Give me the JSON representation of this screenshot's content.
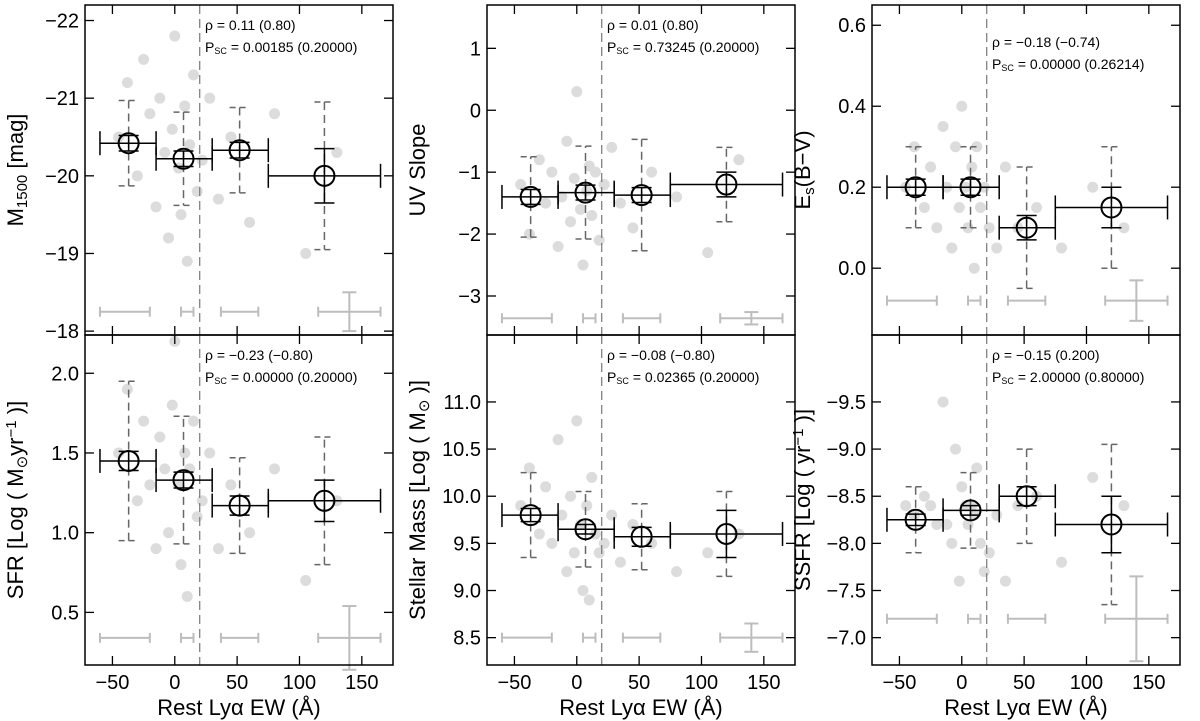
{
  "chart_data": [
    {
      "type": "scatter",
      "ylabel": [
        {
          "text": "M"
        },
        {
          "text": "1500",
          "shift": "sub"
        },
        {
          "text": " [mag]"
        }
      ],
      "xlim": [
        -72,
        175
      ],
      "ylim": [
        -17.95,
        -22.2
      ],
      "xticks": [
        {
          "value": -50,
          "label": "−50"
        },
        0,
        50,
        100,
        150
      ],
      "xtick_labels": false,
      "yticks": [
        {
          "value": -18,
          "label": "−18"
        },
        {
          "value": -19,
          "label": "−19"
        },
        {
          "value": -20,
          "label": "−20"
        },
        {
          "value": -21,
          "label": "−21"
        },
        {
          "value": -22,
          "label": "−22"
        }
      ],
      "rho": "ρ = 0.11 (0.80)",
      "psc_name": "P",
      "psc_sub": "SC",
      "psc": "= 0.00185 (0.20000)",
      "vline": 20,
      "points_x": [
        -45,
        -38,
        -30,
        -25,
        -20,
        -15,
        -12,
        -8,
        -5,
        -2,
        0,
        3,
        5,
        8,
        10,
        12,
        15,
        18,
        22,
        28,
        35,
        45,
        60,
        80,
        105,
        130
      ],
      "points_y": [
        -20.5,
        -21.2,
        -20.0,
        -21.5,
        -20.8,
        -19.6,
        -21.0,
        -20.3,
        -19.2,
        -20.6,
        -21.8,
        -20.1,
        -19.5,
        -20.9,
        -18.9,
        -20.4,
        -21.3,
        -19.8,
        -20.2,
        -21.0,
        -19.7,
        -20.5,
        -19.4,
        -20.8,
        -19.0,
        -20.3
      ],
      "bins_x": [
        -37,
        7,
        52,
        120
      ],
      "bin_edges": [
        -60,
        -15,
        30,
        75,
        165
      ],
      "values": [
        -20.42,
        -20.22,
        -20.33,
        -20.0
      ],
      "errors": [
        0.1,
        0.1,
        0.1,
        0.35
      ],
      "spread": [
        0.55,
        0.6,
        0.55,
        0.95
      ],
      "ref_x": [
        -40,
        10,
        52,
        140
      ],
      "ref_xerr": [
        20,
        5,
        15,
        25
      ],
      "ref_y": -18.25,
      "ref_yerr": 0.25
    },
    {
      "type": "scatter",
      "ylabel": [
        {
          "text": "UV Slope"
        }
      ],
      "xlim": [
        -72,
        175
      ],
      "ylim": [
        -3.63,
        1.7
      ],
      "xticks": [
        {
          "value": -50,
          "label": "−50"
        },
        0,
        50,
        100,
        150
      ],
      "xtick_labels": false,
      "yticks": [
        {
          "value": -3,
          "label": "−3"
        },
        {
          "value": -2,
          "label": "−2"
        },
        {
          "value": -1,
          "label": "−1"
        },
        0,
        1
      ],
      "rho": "ρ = 0.01 (0.80)",
      "psc_name": "P",
      "psc_sub": "SC",
      "psc": "= 0.73245 (0.20000)",
      "vline": 20,
      "points_x": [
        -45,
        -38,
        -30,
        -25,
        -20,
        -15,
        -12,
        -8,
        -5,
        -2,
        0,
        3,
        5,
        8,
        10,
        12,
        15,
        18,
        22,
        28,
        35,
        45,
        60,
        80,
        105,
        130
      ],
      "points_y": [
        -1.2,
        -2.0,
        -0.8,
        -1.5,
        -1.0,
        -2.2,
        -1.4,
        -0.5,
        -1.8,
        -1.1,
        0.3,
        -1.6,
        -2.5,
        -1.3,
        -0.9,
        -1.7,
        -1.0,
        -2.1,
        -1.2,
        -0.6,
        -1.5,
        -1.9,
        -1.0,
        -1.4,
        -2.3,
        -0.8
      ],
      "bins_x": [
        -37,
        7,
        52,
        120
      ],
      "bin_edges": [
        -60,
        -15,
        30,
        75,
        165
      ],
      "values": [
        -1.4,
        -1.33,
        -1.37,
        -1.2
      ],
      "errors": [
        0.12,
        0.12,
        0.12,
        0.2
      ],
      "spread": [
        0.65,
        0.75,
        0.9,
        0.6
      ],
      "ref_x": [
        -40,
        10,
        52,
        140
      ],
      "ref_xerr": [
        20,
        5,
        15,
        25
      ],
      "ref_y": -3.36,
      "ref_yerr": 0.1
    },
    {
      "type": "scatter",
      "ylabel": [
        {
          "text": "E"
        },
        {
          "text": "s",
          "shift": "sub"
        },
        {
          "text": "(B−V)"
        }
      ],
      "xlim": [
        -72,
        175
      ],
      "ylim": [
        -0.165,
        0.65
      ],
      "xticks": [
        {
          "value": -50,
          "label": "−50"
        },
        0,
        50,
        100,
        150
      ],
      "xtick_labels": false,
      "yticks": [
        {
          "value": 0,
          "label": "0.0"
        },
        0.2,
        0.4,
        0.6
      ],
      "rho": "ρ = −0.18 (−0.74)",
      "psc_name": "P",
      "psc_sub": "SC",
      "psc": "= 0.00000 (0.26214)",
      "vline": 20,
      "points_x": [
        -45,
        -38,
        -30,
        -25,
        -20,
        -15,
        -12,
        -8,
        -5,
        -2,
        0,
        3,
        5,
        8,
        10,
        12,
        15,
        18,
        22,
        28,
        35,
        45,
        60,
        80,
        105,
        130
      ],
      "points_y": [
        0.2,
        0.3,
        0.15,
        0.25,
        0.1,
        0.35,
        0.2,
        0.05,
        0.3,
        0.15,
        0.4,
        0.2,
        0.1,
        0.25,
        0.0,
        0.3,
        0.15,
        0.2,
        0.1,
        0.05,
        0.25,
        0.1,
        0.15,
        0.05,
        0.2,
        0.1
      ],
      "bins_x": [
        -37,
        7,
        52,
        120
      ],
      "bin_edges": [
        -60,
        -15,
        30,
        75,
        165
      ],
      "values": [
        0.2,
        0.2,
        0.1,
        0.15
      ],
      "errors": [
        0.02,
        0.02,
        0.03,
        0.05
      ],
      "spread": [
        0.1,
        0.1,
        0.15,
        0.15
      ],
      "ref_x": [
        -40,
        10,
        52,
        140
      ],
      "ref_xerr": [
        20,
        5,
        15,
        25
      ],
      "ref_y": -0.08,
      "ref_yerr": 0.05
    },
    {
      "type": "scatter",
      "xlabel": "Rest Lyα EW (Å)",
      "ylabel": [
        {
          "text": "SFR [Log ( M"
        },
        {
          "text": "⊙",
          "shift": "sub"
        },
        {
          "text": "yr"
        },
        {
          "text": "−1",
          "shift": "super"
        },
        {
          "text": " )]"
        }
      ],
      "xlim": [
        -72,
        175
      ],
      "ylim": [
        0.17,
        2.24
      ],
      "xticks": [
        {
          "value": -50,
          "label": "−50"
        },
        0,
        50,
        100,
        150
      ],
      "xtick_labels": true,
      "yticks": [
        0.5,
        {
          "value": 1,
          "label": "1.0"
        },
        1.5,
        {
          "value": 2,
          "label": "2.0"
        }
      ],
      "rho": "ρ = −0.23 (−0.80)",
      "psc_name": "P",
      "psc_sub": "SC",
      "psc": "= 0.00000 (0.20000)",
      "vline": 20,
      "points_x": [
        -45,
        -38,
        -30,
        -25,
        -20,
        -15,
        -12,
        -8,
        -5,
        -2,
        0,
        3,
        5,
        8,
        10,
        12,
        15,
        18,
        22,
        28,
        35,
        45,
        60,
        80,
        105,
        130
      ],
      "points_y": [
        1.5,
        1.9,
        1.2,
        1.7,
        1.3,
        0.9,
        1.6,
        1.4,
        1.0,
        1.8,
        2.2,
        1.3,
        0.8,
        1.5,
        0.6,
        1.4,
        1.7,
        1.1,
        1.2,
        1.5,
        0.9,
        1.3,
        1.0,
        1.4,
        0.7,
        1.2
      ],
      "bins_x": [
        -37,
        7,
        52,
        120
      ],
      "bin_edges": [
        -60,
        -15,
        30,
        75,
        165
      ],
      "values": [
        1.45,
        1.33,
        1.17,
        1.2
      ],
      "errors": [
        0.06,
        0.05,
        0.06,
        0.13
      ],
      "spread": [
        0.5,
        0.4,
        0.3,
        0.4
      ],
      "ref_x": [
        -40,
        10,
        52,
        140
      ],
      "ref_xerr": [
        20,
        5,
        15,
        25
      ],
      "ref_y": 0.34,
      "ref_yerr": 0.2
    },
    {
      "type": "scatter",
      "xlabel": "Rest Lyα EW (Å)",
      "ylabel": [
        {
          "text": "Stellar Mass [Log ( M"
        },
        {
          "text": "⊙",
          "shift": "sub"
        },
        {
          "text": " )]"
        }
      ],
      "xlim": [
        -72,
        175
      ],
      "ylim": [
        8.21,
        11.71
      ],
      "xticks": [
        {
          "value": -50,
          "label": "−50"
        },
        0,
        50,
        100,
        150
      ],
      "xtick_labels": true,
      "yticks": [
        8.5,
        {
          "value": 9,
          "label": "9.0"
        },
        9.5,
        {
          "value": 10,
          "label": "10.0"
        },
        10.5,
        {
          "value": 11,
          "label": "11.0"
        }
      ],
      "rho": "ρ = −0.08 (−0.80)",
      "psc_name": "P",
      "psc_sub": "SC",
      "psc": "= 0.02365 (0.20000)",
      "vline": 20,
      "points_x": [
        -45,
        -38,
        -30,
        -25,
        -20,
        -15,
        -12,
        -8,
        -5,
        -2,
        0,
        3,
        5,
        8,
        10,
        12,
        15,
        18,
        22,
        28,
        35,
        45,
        60,
        80,
        105,
        130
      ],
      "points_y": [
        9.9,
        10.3,
        9.6,
        10.1,
        9.5,
        10.6,
        9.8,
        9.2,
        10.0,
        9.4,
        10.8,
        9.7,
        9.0,
        9.9,
        8.9,
        10.2,
        9.6,
        9.4,
        9.5,
        9.8,
        9.3,
        9.7,
        9.5,
        9.2,
        9.4,
        9.6
      ],
      "bins_x": [
        -37,
        7,
        52,
        120
      ],
      "bin_edges": [
        -60,
        -15,
        30,
        75,
        165
      ],
      "values": [
        9.8,
        9.65,
        9.57,
        9.6
      ],
      "errors": [
        0.07,
        0.05,
        0.1,
        0.25
      ],
      "spread": [
        0.45,
        0.4,
        0.35,
        0.45
      ],
      "ref_x": [
        -40,
        10,
        52,
        140
      ],
      "ref_xerr": [
        20,
        5,
        15,
        25
      ],
      "ref_y": 8.5,
      "ref_yerr": 0.15
    },
    {
      "type": "scatter",
      "xlabel": "Rest Lyα EW (Å)",
      "ylabel": [
        {
          "text": "SSFR [Log ( yr"
        },
        {
          "text": "−1",
          "shift": "super"
        },
        {
          "text": " )]"
        }
      ],
      "xlim": [
        -72,
        175
      ],
      "ylim": [
        -6.71,
        -10.21
      ],
      "xticks": [
        {
          "value": -50,
          "label": "−50"
        },
        0,
        50,
        100,
        150
      ],
      "xtick_labels": true,
      "yticks": [
        {
          "value": -7,
          "label": "−7.0"
        },
        {
          "value": -7.5,
          "label": "−7.5"
        },
        {
          "value": -8,
          "label": "−8.0"
        },
        {
          "value": -8.5,
          "label": "−8.5"
        },
        {
          "value": -9,
          "label": "−9.0"
        },
        {
          "value": -9.5,
          "label": "−9.5"
        }
      ],
      "rho": "ρ = −0.15 (0.200)",
      "psc_name": "P",
      "psc_sub": "SC",
      "psc": "= 2.00000 (0.80000)",
      "vline": 20,
      "points_x": [
        -45,
        -38,
        -30,
        -25,
        -20,
        -15,
        -12,
        -8,
        -5,
        -2,
        0,
        3,
        5,
        8,
        10,
        12,
        15,
        18,
        22,
        28,
        35,
        45,
        60,
        80,
        105,
        130
      ],
      "points_y": [
        -8.4,
        -8.3,
        -8.5,
        -8.4,
        -8.2,
        -9.5,
        -8.2,
        -8.0,
        -9.0,
        -7.6,
        -8.6,
        -8.4,
        -8.2,
        -8.4,
        -8.3,
        -8.8,
        -8.0,
        -7.7,
        -7.9,
        -8.3,
        -7.6,
        -8.4,
        -8.5,
        -7.8,
        -8.7,
        -8.4
      ],
      "bins_x": [
        -37,
        7,
        52,
        120
      ],
      "bin_edges": [
        -60,
        -15,
        30,
        75,
        165
      ],
      "values": [
        -8.25,
        -8.35,
        -8.5,
        -8.2
      ],
      "errors": [
        0.06,
        0.05,
        0.1,
        0.3
      ],
      "spread": [
        0.35,
        0.4,
        0.5,
        0.85
      ],
      "ref_x": [
        -40,
        10,
        52,
        140
      ],
      "ref_xerr": [
        20,
        5,
        15,
        25
      ],
      "ref_y": -7.2,
      "ref_yerr": 0.45
    }
  ]
}
